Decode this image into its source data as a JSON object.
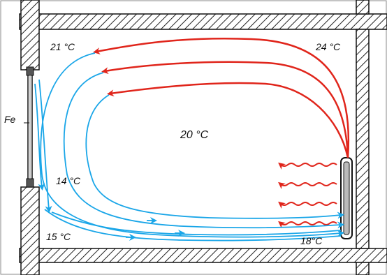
{
  "labels": {
    "top_left_temp": "21 °C",
    "top_right_temp": "24 °C",
    "center_temp": "20 °C",
    "mid_left_temp": "14 °C",
    "bottom_left_temp": "15 °C",
    "bottom_right_temp": "18°C",
    "window_label": "Fe"
  },
  "colors": {
    "warm_air": "#e0251b",
    "cool_air": "#1aa6e8",
    "wall_hatch": "#222222",
    "outline": "#111111"
  }
}
